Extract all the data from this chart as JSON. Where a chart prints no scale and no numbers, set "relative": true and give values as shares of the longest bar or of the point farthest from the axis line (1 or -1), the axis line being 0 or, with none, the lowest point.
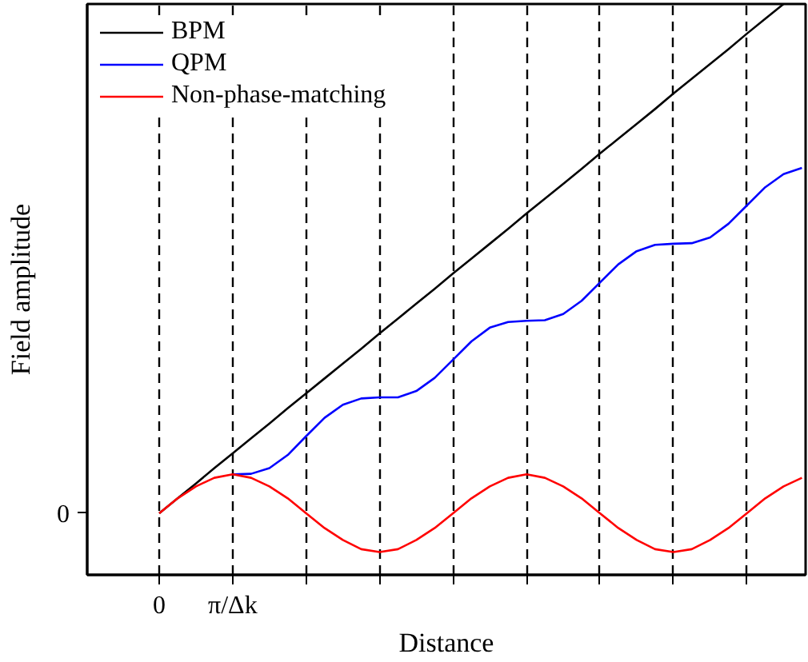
{
  "chart_data": {
    "type": "line",
    "xlabel": "Distance",
    "ylabel": "Field amplitude",
    "relative": true,
    "annotations": [
      "0"
    ],
    "categories": [
      "0",
      null,
      null,
      null,
      "π/Δk",
      null,
      null,
      null,
      null,
      null,
      null,
      null,
      null,
      null,
      null,
      null,
      null,
      null,
      null,
      null,
      null,
      null,
      null,
      null,
      null,
      null,
      null,
      null,
      null,
      null,
      null,
      null,
      null,
      null,
      null,
      null
    ],
    "legend": "top left",
    "grid": "x",
    "line_style": "solid",
    "series": [
      {
        "name": "BPM",
        "color": "#000000",
        "values": [
          0.108,
          0.134,
          0.16,
          0.187,
          0.213,
          0.239,
          0.265,
          0.292,
          0.318,
          0.344,
          0.37,
          0.396,
          0.423,
          0.449,
          0.475,
          0.501,
          0.528,
          0.554,
          0.58,
          0.606,
          0.633,
          0.659,
          0.685,
          0.711,
          0.738,
          0.764,
          0.79,
          0.816,
          0.843,
          0.869,
          0.895,
          0.921,
          0.948,
          0.974,
          1.0,
          null
        ]
      },
      {
        "name": "QPM",
        "color": "#0000ff",
        "values": [
          null,
          null,
          null,
          null,
          0.176,
          0.177,
          0.187,
          0.21,
          0.243,
          0.275,
          0.298,
          0.309,
          0.311,
          0.311,
          0.322,
          0.345,
          0.377,
          0.409,
          0.433,
          0.443,
          0.445,
          0.446,
          0.457,
          0.48,
          0.512,
          0.544,
          0.567,
          0.578,
          0.58,
          0.581,
          0.591,
          0.615,
          0.647,
          0.679,
          0.702,
          0.713
        ]
      },
      {
        "name": "Non-phase-matching",
        "color": "#ff0000",
        "values": [
          0.108,
          0.134,
          0.155,
          0.17,
          0.176,
          0.17,
          0.155,
          0.134,
          0.108,
          0.082,
          0.061,
          0.045,
          0.04,
          0.045,
          0.061,
          0.082,
          0.108,
          0.134,
          0.155,
          0.17,
          0.176,
          0.17,
          0.155,
          0.134,
          0.108,
          0.082,
          0.061,
          0.045,
          0.04,
          0.045,
          0.061,
          0.082,
          0.108,
          0.134,
          0.155,
          0.17
        ]
      }
    ]
  }
}
